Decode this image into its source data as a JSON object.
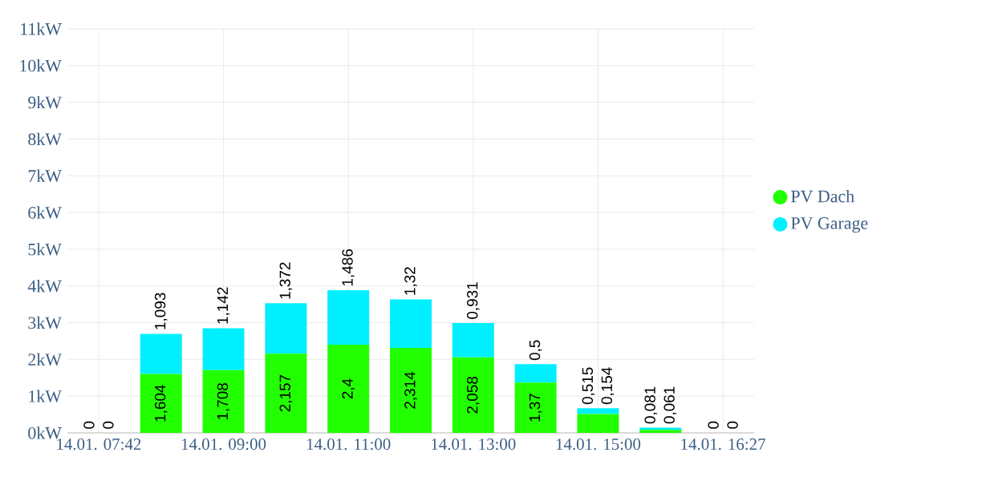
{
  "chart_data": {
    "type": "bar",
    "stacked": true,
    "categories": [
      "14.01. 07:42",
      null,
      "14.01. 09:00",
      null,
      "14.01. 11:00",
      null,
      "14.01. 13:00",
      null,
      "14.01. 15:00",
      null,
      "14.01. 16:27"
    ],
    "series": [
      {
        "name": "PV Dach",
        "color": "#22ff00",
        "values": [
          0,
          1.604,
          1.708,
          2.157,
          2.4,
          2.314,
          2.058,
          1.37,
          0.515,
          0.081,
          0
        ],
        "value_labels": [
          "0",
          "1,604",
          "1,708",
          "2,157",
          "2,4",
          "2,314",
          "2,058",
          "1,37",
          "0,515",
          "0,081",
          "0"
        ]
      },
      {
        "name": "PV Garage",
        "color": "#00f0ff",
        "values": [
          0,
          1.093,
          1.142,
          1.372,
          1.486,
          1.32,
          0.931,
          0.5,
          0.154,
          0.061,
          0
        ],
        "value_labels": [
          "0",
          "1,093",
          "1,142",
          "1,372",
          "1,486",
          "1,32",
          "0,931",
          "0,5",
          "0,154",
          "0,061",
          "0"
        ]
      }
    ],
    "ylim": [
      0,
      11
    ],
    "yticks": [
      {
        "value": 0,
        "label": "0kW"
      },
      {
        "value": 1,
        "label": "1kW"
      },
      {
        "value": 2,
        "label": "2kW"
      },
      {
        "value": 3,
        "label": "3kW"
      },
      {
        "value": 4,
        "label": "4kW"
      },
      {
        "value": 5,
        "label": "5kW"
      },
      {
        "value": 6,
        "label": "6kW"
      },
      {
        "value": 7,
        "label": "7kW"
      },
      {
        "value": 8,
        "label": "8kW"
      },
      {
        "value": 9,
        "label": "9kW"
      },
      {
        "value": 10,
        "label": "10kW"
      },
      {
        "value": 11,
        "label": "11kW"
      }
    ],
    "grid": true,
    "legend": "right"
  }
}
